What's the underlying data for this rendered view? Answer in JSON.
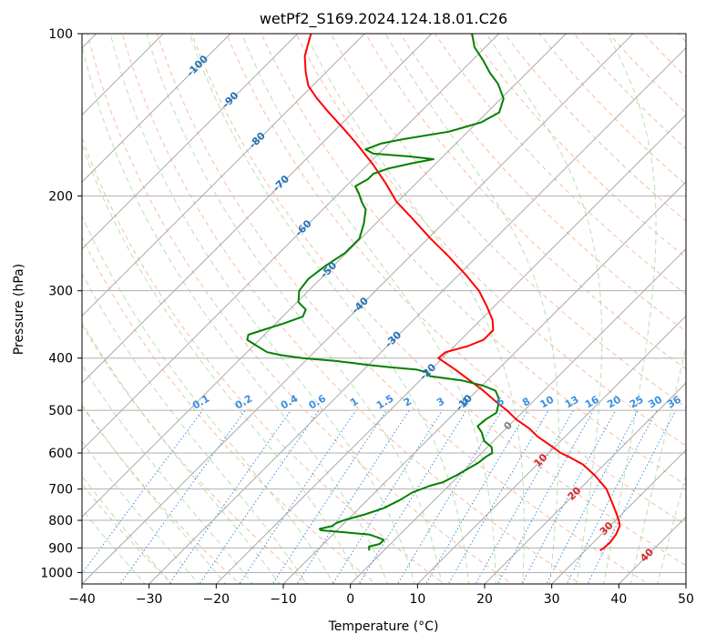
{
  "chart_data": {
    "type": "skew-t log-p",
    "title": "wetPf2_S169.2024.124.18.01.C26",
    "xlabel": "Temperature (°C)",
    "ylabel": "Pressure (hPa)",
    "xlim": [
      -40,
      50
    ],
    "ylim_hpa": [
      1050,
      100
    ],
    "pressure_scale": "log",
    "x_ticks": [
      "−40",
      "−30",
      "−20",
      "−10",
      "0",
      "10",
      "20",
      "30",
      "40",
      "50"
    ],
    "y_ticks": [
      "100",
      "200",
      "300",
      "400",
      "500",
      "600",
      "700",
      "800",
      "900",
      "1000"
    ],
    "grid": true,
    "colors": {
      "temperature": "#ff0000",
      "dewpoint": "#008000",
      "isotherm": "#aaaaaa",
      "dry_adiabat": "#f4a582",
      "moist_adiabat": "#a6d49b",
      "mixing_ratio": "#3a8fe0",
      "isotherm_label": "#2171b5",
      "warm_label": "#d62728",
      "zero_label": "#808080"
    },
    "isotherm_labels": [
      {
        "t": -100,
        "p": 115,
        "text": "-100",
        "color": "isotherm_label"
      },
      {
        "t": -90,
        "p": 133,
        "text": "-90",
        "color": "isotherm_label"
      },
      {
        "t": -80,
        "p": 158,
        "text": "-80",
        "color": "isotherm_label"
      },
      {
        "t": -70,
        "p": 190,
        "text": "-70",
        "color": "isotherm_label"
      },
      {
        "t": -60,
        "p": 230,
        "text": "-60",
        "color": "isotherm_label"
      },
      {
        "t": -50,
        "p": 275,
        "text": "-50",
        "color": "isotherm_label"
      },
      {
        "t": -40,
        "p": 320,
        "text": "-40",
        "color": "isotherm_label"
      },
      {
        "t": -30,
        "p": 370,
        "text": "-30",
        "color": "isotherm_label"
      },
      {
        "t": -20,
        "p": 425,
        "text": "-20",
        "color": "isotherm_label"
      },
      {
        "t": -10,
        "p": 485,
        "text": "-10",
        "color": "isotherm_label"
      },
      {
        "t": 0,
        "p": 535,
        "text": "0",
        "color": "zero_label"
      },
      {
        "t": 10,
        "p": 620,
        "text": "10",
        "color": "warm_label"
      },
      {
        "t": 20,
        "p": 715,
        "text": "20",
        "color": "warm_label"
      },
      {
        "t": 30,
        "p": 830,
        "text": "30",
        "color": "warm_label"
      },
      {
        "t": 40,
        "p": 930,
        "text": "40",
        "color": "warm_label"
      }
    ],
    "mixing_ratio_labels": [
      "0.1",
      "0.2",
      "0.4",
      "0.6",
      "1",
      "1.5",
      "2",
      "3",
      "4",
      "6",
      "8",
      "10",
      "13",
      "16",
      "20",
      "25",
      "30",
      "36"
    ],
    "mixing_ratio_values": [
      0.1,
      0.2,
      0.4,
      0.6,
      1,
      1.5,
      2,
      3,
      4,
      6,
      8,
      10,
      13,
      16,
      20,
      25,
      30,
      36
    ],
    "temperature_profile": [
      [
        910,
        32.2
      ],
      [
        900,
        32.4
      ],
      [
        880,
        32.5
      ],
      [
        850,
        32.2
      ],
      [
        820,
        31.5
      ],
      [
        800,
        30.5
      ],
      [
        780,
        29.3
      ],
      [
        750,
        27.4
      ],
      [
        700,
        24.0
      ],
      [
        660,
        20.2
      ],
      [
        630,
        16.8
      ],
      [
        610,
        13.6
      ],
      [
        600,
        11.8
      ],
      [
        580,
        9.0
      ],
      [
        560,
        6.0
      ],
      [
        540,
        3.4
      ],
      [
        520,
        0.2
      ],
      [
        500,
        -2.6
      ],
      [
        480,
        -5.8
      ],
      [
        460,
        -9.0
      ],
      [
        440,
        -12.6
      ],
      [
        420,
        -16.4
      ],
      [
        400,
        -20.6
      ],
      [
        390,
        -20.4
      ],
      [
        380,
        -18.0
      ],
      [
        370,
        -16.6
      ],
      [
        355,
        -16.6
      ],
      [
        340,
        -18.2
      ],
      [
        320,
        -21.2
      ],
      [
        300,
        -24.6
      ],
      [
        280,
        -29.0
      ],
      [
        260,
        -34.0
      ],
      [
        240,
        -39.6
      ],
      [
        220,
        -45.4
      ],
      [
        205,
        -50.2
      ],
      [
        190,
        -54.4
      ],
      [
        175,
        -59.2
      ],
      [
        160,
        -64.8
      ],
      [
        150,
        -69.0
      ],
      [
        140,
        -73.6
      ],
      [
        132,
        -77.4
      ],
      [
        125,
        -80.6
      ],
      [
        118,
        -83.0
      ],
      [
        110,
        -85.6
      ],
      [
        100,
        -88.0
      ]
    ],
    "dewpoint_profile": [
      [
        910,
        -2.2
      ],
      [
        895,
        -2.8
      ],
      [
        885,
        -1.6
      ],
      [
        870,
        -1.6
      ],
      [
        860,
        -3.0
      ],
      [
        850,
        -4.6
      ],
      [
        840,
        -9.6
      ],
      [
        835,
        -12.4
      ],
      [
        830,
        -12.8
      ],
      [
        820,
        -11.4
      ],
      [
        810,
        -11.2
      ],
      [
        800,
        -10.5
      ],
      [
        780,
        -8.2
      ],
      [
        760,
        -6.4
      ],
      [
        735,
        -5.2
      ],
      [
        710,
        -4.4
      ],
      [
        690,
        -2.8
      ],
      [
        680,
        -1.4
      ],
      [
        660,
        -0.4
      ],
      [
        640,
        0.4
      ],
      [
        625,
        1.0
      ],
      [
        610,
        1.2
      ],
      [
        600,
        1.6
      ],
      [
        585,
        0.6
      ],
      [
        570,
        -1.4
      ],
      [
        550,
        -3.0
      ],
      [
        535,
        -4.6
      ],
      [
        520,
        -4.4
      ],
      [
        505,
        -3.8
      ],
      [
        490,
        -4.6
      ],
      [
        475,
        -5.6
      ],
      [
        460,
        -7.2
      ],
      [
        450,
        -9.8
      ],
      [
        440,
        -13.8
      ],
      [
        432,
        -19.2
      ],
      [
        425,
        -20.2
      ],
      [
        420,
        -22.2
      ],
      [
        416,
        -26.4
      ],
      [
        412,
        -30.0
      ],
      [
        408,
        -33.0
      ],
      [
        405,
        -35.4
      ],
      [
        400,
        -40.8
      ],
      [
        395,
        -44.4
      ],
      [
        390,
        -47.0
      ],
      [
        380,
        -49.4
      ],
      [
        370,
        -51.8
      ],
      [
        362,
        -52.4
      ],
      [
        355,
        -51.0
      ],
      [
        345,
        -48.8
      ],
      [
        335,
        -47.0
      ],
      [
        325,
        -47.6
      ],
      [
        315,
        -49.8
      ],
      [
        300,
        -51.4
      ],
      [
        285,
        -51.8
      ],
      [
        270,
        -51.2
      ],
      [
        255,
        -50.2
      ],
      [
        240,
        -50.2
      ],
      [
        225,
        -51.8
      ],
      [
        212,
        -53.6
      ],
      [
        205,
        -55.4
      ],
      [
        198,
        -57.0
      ],
      [
        192,
        -58.6
      ],
      [
        186,
        -57.8
      ],
      [
        182,
        -57.8
      ],
      [
        178,
        -56.4
      ],
      [
        174,
        -53.6
      ],
      [
        171,
        -51.0
      ],
      [
        169,
        -55.0
      ],
      [
        167,
        -60.8
      ],
      [
        164,
        -62.6
      ],
      [
        160,
        -61.2
      ],
      [
        157,
        -58.6
      ],
      [
        152,
        -52.8
      ],
      [
        146,
        -49.4
      ],
      [
        140,
        -48.2
      ],
      [
        132,
        -49.6
      ],
      [
        124,
        -52.6
      ],
      [
        118,
        -55.6
      ],
      [
        112,
        -58.4
      ],
      [
        106,
        -61.6
      ],
      [
        100,
        -64.0
      ]
    ]
  }
}
